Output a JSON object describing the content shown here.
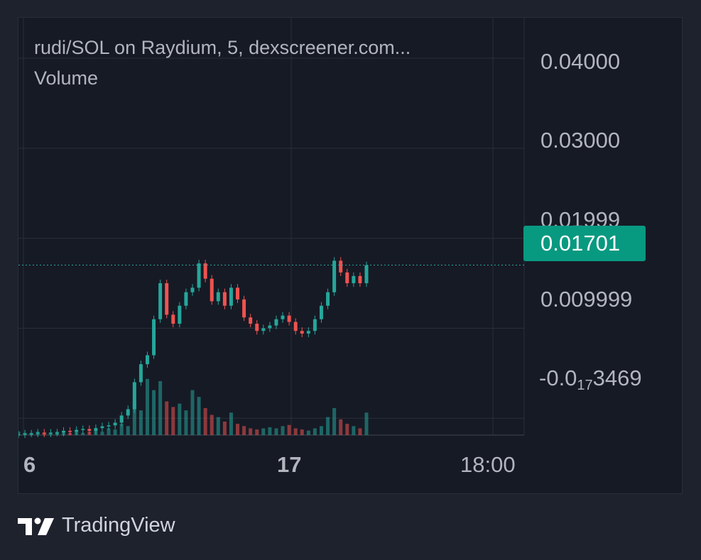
{
  "legend": {
    "title": "rudi/SOL on Raydium, 5, dexscreener.com...",
    "volume": "Volume"
  },
  "price_axis": {
    "labels": [
      "0.04000",
      "0.03000",
      "0.01999",
      "0.009999"
    ],
    "negative_label": {
      "main": "-0.0",
      "sub": "17",
      "tail": "3469"
    },
    "current_price": "0.01701"
  },
  "time_axis": {
    "labels": [
      {
        "text": "6",
        "bold": true
      },
      {
        "text": "17",
        "bold": true
      },
      {
        "text": "18:00",
        "bold": false
      }
    ]
  },
  "brand": {
    "name": "TradingView"
  },
  "colors": {
    "up": "#26a69a",
    "down": "#ef5350",
    "price_tag": "#089981",
    "grid": "#2a2e39",
    "background": "#161a25"
  },
  "icons": [
    "tradingview-logo-icon"
  ],
  "chart_data": {
    "type": "candlestick",
    "title": "rudi/SOL on Raydium, 5, dexscreener.com...",
    "interval": "5",
    "x_ticks": [
      "6",
      "17",
      "18:00"
    ],
    "y_ticks": [
      "-0.0₁₇3469",
      "0.009999",
      "0.01999",
      "0.03000",
      "0.04000"
    ],
    "ylim": [
      -0.0085,
      0.0445
    ],
    "last_price": 0.01701,
    "grid": true,
    "price_series": {
      "name": "close",
      "x": [
        0,
        1,
        2,
        3,
        4,
        5,
        6,
        7,
        8,
        9,
        10,
        11,
        12,
        13,
        14,
        15,
        16,
        17,
        18,
        19,
        20,
        21,
        22,
        23,
        24,
        25,
        26,
        27,
        28,
        29,
        30,
        31,
        32,
        33,
        34,
        35,
        36,
        37,
        38,
        39,
        40,
        41,
        42,
        43,
        44,
        45,
        46,
        47,
        48,
        49,
        50,
        51,
        52,
        53,
        54
      ],
      "values": [
        -0.0018,
        -0.0017,
        -0.0017,
        -0.0016,
        -0.0017,
        -0.0016,
        -0.0016,
        -0.0014,
        -0.0015,
        -0.0013,
        -0.0012,
        -0.0014,
        -0.0011,
        -0.0009,
        -0.0008,
        -0.0005,
        0.0003,
        0.001,
        0.004,
        0.006,
        0.007,
        0.011,
        0.015,
        0.0115,
        0.0105,
        0.0125,
        0.014,
        0.0145,
        0.0172,
        0.0155,
        0.013,
        0.014,
        0.0125,
        0.0145,
        0.0132,
        0.0112,
        0.0105,
        0.0097,
        0.01,
        0.0103,
        0.011,
        0.0114,
        0.0107,
        0.0097,
        0.0094,
        0.0097,
        0.011,
        0.0125,
        0.014,
        0.0175,
        0.0162,
        0.015,
        0.0158,
        0.015,
        0.017
      ]
    },
    "volume_series": {
      "name": "Volume",
      "x": [
        0,
        1,
        2,
        3,
        4,
        5,
        6,
        7,
        8,
        9,
        10,
        11,
        12,
        13,
        14,
        15,
        16,
        17,
        18,
        19,
        20,
        21,
        22,
        23,
        24,
        25,
        26,
        27,
        28,
        29,
        30,
        31,
        32,
        33,
        34,
        35,
        36,
        37,
        38,
        39,
        40,
        41,
        42,
        43,
        44,
        45,
        46,
        47,
        48,
        49,
        50,
        51,
        52,
        53,
        54
      ],
      "values": [
        3,
        2,
        2,
        3,
        2,
        2,
        3,
        2,
        2,
        3,
        2,
        3,
        4,
        3,
        6,
        5,
        10,
        8,
        30,
        22,
        50,
        40,
        48,
        30,
        25,
        28,
        22,
        40,
        34,
        24,
        18,
        16,
        12,
        20,
        10,
        8,
        6,
        5,
        6,
        7,
        6,
        8,
        9,
        6,
        5,
        4,
        6,
        8,
        16,
        24,
        14,
        10,
        8,
        6,
        20
      ],
      "ylim": [
        0,
        60
      ]
    }
  }
}
